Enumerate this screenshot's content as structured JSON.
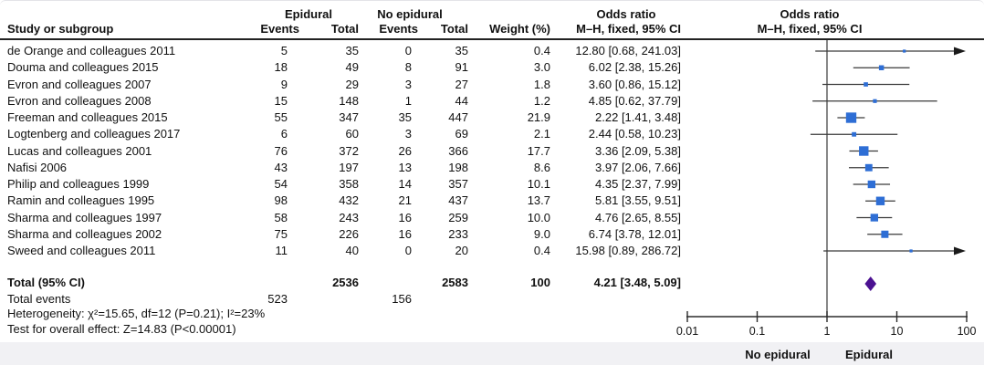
{
  "table": {
    "col_study": "Study or subgroup",
    "group1": "Epidural",
    "group2": "No epidural",
    "col_events": "Events",
    "col_total": "Total",
    "col_weight": "Weight (%)",
    "or_header": "Odds ratio",
    "or_subheader": "M–H, fixed, 95% CI"
  },
  "axis": {
    "ticks": [
      "0.01",
      "0.1",
      "1",
      "10",
      "100"
    ],
    "left_label": "No epidural",
    "right_label": "Epidural"
  },
  "colors": {
    "marker_blue": "#2e6ed5",
    "diamond_purple": "#4b1191",
    "line_dark": "#3a3a3a",
    "axis_black": "#2b2b2b"
  },
  "chart_data": {
    "type": "scatter",
    "subtype": "forest_plot_meta_analysis",
    "x_scale": "log10",
    "x_ticks": [
      0.01,
      0.1,
      1,
      10,
      100
    ],
    "x_range": [
      0.01,
      100
    ],
    "null_line": 1,
    "effect_label": "Odds ratio — M–H, fixed, 95% CI",
    "favours_left": "No epidural",
    "favours_right": "Epidural",
    "studies": [
      {
        "name": "de Orange and colleagues 2011",
        "epidural_events": 5,
        "epidural_total": 35,
        "no_epidural_events": 0,
        "no_epidural_total": 35,
        "weight_pct": 0.4,
        "weight_text": "0.4",
        "or": 12.8,
        "ci_low": 0.68,
        "ci_high": 241.03,
        "or_text": "12.80 [0.68, 241.03]"
      },
      {
        "name": "Douma and colleagues 2015",
        "epidural_events": 18,
        "epidural_total": 49,
        "no_epidural_events": 8,
        "no_epidural_total": 91,
        "weight_pct": 3.0,
        "weight_text": "3.0",
        "or": 6.02,
        "ci_low": 2.38,
        "ci_high": 15.26,
        "or_text": "6.02 [2.38, 15.26]"
      },
      {
        "name": "Evron and colleagues 2007",
        "epidural_events": 9,
        "epidural_total": 29,
        "no_epidural_events": 3,
        "no_epidural_total": 27,
        "weight_pct": 1.8,
        "weight_text": "1.8",
        "or": 3.6,
        "ci_low": 0.86,
        "ci_high": 15.12,
        "or_text": "3.60 [0.86, 15.12]"
      },
      {
        "name": "Evron and colleagues 2008",
        "epidural_events": 15,
        "epidural_total": 148,
        "no_epidural_events": 1,
        "no_epidural_total": 44,
        "weight_pct": 1.2,
        "weight_text": "1.2",
        "or": 4.85,
        "ci_low": 0.62,
        "ci_high": 37.79,
        "or_text": "4.85 [0.62, 37.79]"
      },
      {
        "name": "Freeman and colleagues 2015",
        "epidural_events": 55,
        "epidural_total": 347,
        "no_epidural_events": 35,
        "no_epidural_total": 447,
        "weight_pct": 21.9,
        "weight_text": "21.9",
        "or": 2.22,
        "ci_low": 1.41,
        "ci_high": 3.48,
        "or_text": "2.22 [1.41, 3.48]"
      },
      {
        "name": "Logtenberg and colleagues 2017",
        "epidural_events": 6,
        "epidural_total": 60,
        "no_epidural_events": 3,
        "no_epidural_total": 69,
        "weight_pct": 2.1,
        "weight_text": "2.1",
        "or": 2.44,
        "ci_low": 0.58,
        "ci_high": 10.23,
        "or_text": "2.44 [0.58, 10.23]"
      },
      {
        "name": "Lucas and colleagues 2001",
        "epidural_events": 76,
        "epidural_total": 372,
        "no_epidural_events": 26,
        "no_epidural_total": 366,
        "weight_pct": 17.7,
        "weight_text": "17.7",
        "or": 3.36,
        "ci_low": 2.09,
        "ci_high": 5.38,
        "or_text": "3.36 [2.09, 5.38]"
      },
      {
        "name": "Nafisi 2006",
        "epidural_events": 43,
        "epidural_total": 197,
        "no_epidural_events": 13,
        "no_epidural_total": 198,
        "weight_pct": 8.6,
        "weight_text": "8.6",
        "or": 3.97,
        "ci_low": 2.06,
        "ci_high": 7.66,
        "or_text": "3.97 [2.06, 7.66]"
      },
      {
        "name": "Philip and colleagues 1999",
        "epidural_events": 54,
        "epidural_total": 358,
        "no_epidural_events": 14,
        "no_epidural_total": 357,
        "weight_pct": 10.1,
        "weight_text": "10.1",
        "or": 4.35,
        "ci_low": 2.37,
        "ci_high": 7.99,
        "or_text": "4.35 [2.37, 7.99]"
      },
      {
        "name": "Ramin and colleagues 1995",
        "epidural_events": 98,
        "epidural_total": 432,
        "no_epidural_events": 21,
        "no_epidural_total": 437,
        "weight_pct": 13.7,
        "weight_text": "13.7",
        "or": 5.81,
        "ci_low": 3.55,
        "ci_high": 9.51,
        "or_text": "5.81 [3.55, 9.51]"
      },
      {
        "name": "Sharma and colleagues 1997",
        "epidural_events": 58,
        "epidural_total": 243,
        "no_epidural_events": 16,
        "no_epidural_total": 259,
        "weight_pct": 10.0,
        "weight_text": "10.0",
        "or": 4.76,
        "ci_low": 2.65,
        "ci_high": 8.55,
        "or_text": "4.76 [2.65, 8.55]"
      },
      {
        "name": "Sharma and colleagues 2002",
        "epidural_events": 75,
        "epidural_total": 226,
        "no_epidural_events": 16,
        "no_epidural_total": 233,
        "weight_pct": 9.0,
        "weight_text": "9.0",
        "or": 6.74,
        "ci_low": 3.78,
        "ci_high": 12.01,
        "or_text": "6.74 [3.78, 12.01]"
      },
      {
        "name": "Sweed and colleagues 2011",
        "epidural_events": 11,
        "epidural_total": 40,
        "no_epidural_events": 0,
        "no_epidural_total": 20,
        "weight_pct": 0.4,
        "weight_text": "0.4",
        "or": 15.98,
        "ci_low": 0.89,
        "ci_high": 286.72,
        "or_text": "15.98 [0.89, 286.72]"
      }
    ],
    "total": {
      "label": "Total (95% CI)",
      "epidural_total": 2536,
      "no_epidural_total": 2583,
      "weight_text": "100",
      "or": 4.21,
      "ci_low": 3.48,
      "ci_high": 5.09,
      "or_text": "4.21 [3.48, 5.09]"
    },
    "total_events": {
      "label": "Total events",
      "epidural": 523,
      "no_epidural": 156
    },
    "heterogeneity": "Heterogeneity: χ²=15.65, df=12 (P=0.21); I²=23%",
    "overall_effect": "Test for overall effect: Z=14.83 (P<0.00001)"
  }
}
